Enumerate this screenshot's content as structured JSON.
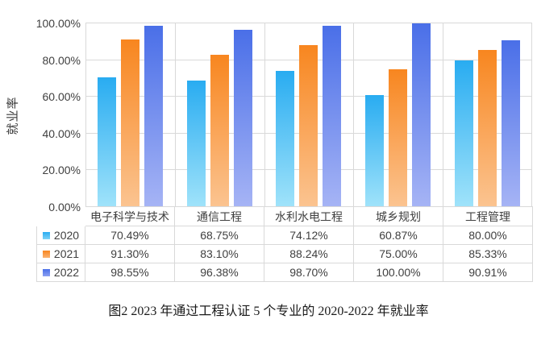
{
  "figure": {
    "caption": "图2  2023 年通过工程认证 5 个专业的 2020-2022 年就业率"
  },
  "chart_data": {
    "type": "bar",
    "title": "",
    "xlabel": "",
    "ylabel": "就业率",
    "ylim": [
      0,
      100
    ],
    "grid": true,
    "legend_position": "table-left-column",
    "ytick_labels": [
      "0.00%",
      "20.00%",
      "40.00%",
      "60.00%",
      "80.00%",
      "100.00%"
    ],
    "categories": [
      "电子科学与技术",
      "通信工程",
      "水利水电工程",
      "城乡规划",
      "工程管理"
    ],
    "series": [
      {
        "name": "2020",
        "values": [
          70.49,
          68.75,
          74.12,
          60.87,
          80.0
        ],
        "values_formatted": [
          "70.49%",
          "68.75%",
          "74.12%",
          "60.87%",
          "80.00%"
        ],
        "color_top": "#29acf1",
        "color_bottom": "#a0e3fa"
      },
      {
        "name": "2021",
        "values": [
          91.3,
          83.1,
          88.24,
          75.0,
          85.33
        ],
        "values_formatted": [
          "91.30%",
          "83.10%",
          "88.24%",
          "75.00%",
          "85.33%"
        ],
        "color_top": "#f8861f",
        "color_bottom": "#fbc491"
      },
      {
        "name": "2022",
        "values": [
          98.55,
          96.38,
          98.7,
          100.0,
          90.91
        ],
        "values_formatted": [
          "98.55%",
          "96.38%",
          "98.70%",
          "100.00%",
          "90.91%"
        ],
        "color_top": "#4a6fe8",
        "color_bottom": "#a6b4f5"
      }
    ],
    "colors": {
      "gridline": "#d9d9d9",
      "table_border": "#d9d9d9",
      "axis_text": "#404040"
    }
  }
}
